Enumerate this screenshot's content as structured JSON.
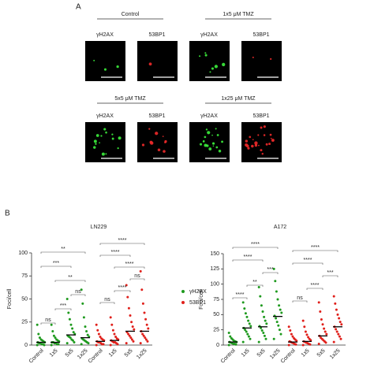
{
  "panel_a": {
    "label": "A",
    "groups": [
      {
        "title": "Control",
        "channels": [
          "γH2AX",
          "53BP1"
        ]
      },
      {
        "title": "1x5 μM TMZ",
        "channels": [
          "γH2AX",
          "53BP1"
        ]
      },
      {
        "title": "5x5 μM TMZ",
        "channels": [
          "γH2AX",
          "53BP1"
        ]
      },
      {
        "title": "1x25 μM TMZ",
        "channels": [
          "γH2AX",
          "53BP1"
        ]
      }
    ]
  },
  "panel_b": {
    "label": "B",
    "legend": [
      {
        "name": "γH2AX",
        "color": "#1e9a1e"
      },
      {
        "name": "53BP1",
        "color": "#e0201b"
      }
    ]
  },
  "chart_data": [
    {
      "type": "dotplot",
      "title": "LN229",
      "y_label": "Foci/cell",
      "categories": [
        "Control",
        "1x5",
        "5x5",
        "1x25"
      ],
      "ylim": [
        0,
        100
      ],
      "yticks": [
        0,
        25,
        50,
        75,
        100
      ],
      "series": [
        {
          "color": "#1e9a1e",
          "values": [
            [
              0,
              0,
              1,
              1,
              2,
              2,
              3,
              3,
              4,
              5,
              6,
              8,
              12,
              22
            ],
            [
              0,
              1,
              1,
              2,
              2,
              3,
              3,
              4,
              5,
              6,
              8,
              10,
              15,
              22
            ],
            [
              2,
              3,
              5,
              6,
              8,
              9,
              10,
              12,
              14,
              18,
              22,
              28,
              35,
              50
            ],
            [
              1,
              2,
              3,
              4,
              5,
              6,
              7,
              9,
              11,
              15,
              20,
              30,
              45,
              60
            ]
          ],
          "means": [
            3,
            3,
            11,
            8
          ],
          "brackets": [
            {
              "from": "Control",
              "to": "1x5",
              "label": "ns"
            },
            {
              "from": "1x5",
              "to": "5x5",
              "label": "***"
            },
            {
              "from": "5x5",
              "to": "1x25",
              "label": "ns"
            },
            {
              "from": "1x5",
              "to": "1x25",
              "label": "**"
            },
            {
              "from": "Control",
              "to": "5x5",
              "label": "***"
            },
            {
              "from": "Control",
              "to": "1x25",
              "label": "**"
            }
          ]
        },
        {
          "color": "#e0201b",
          "values": [
            [
              0,
              1,
              1,
              2,
              3,
              3,
              4,
              5,
              6,
              7,
              9,
              12,
              16,
              22
            ],
            [
              0,
              1,
              2,
              3,
              3,
              4,
              5,
              6,
              7,
              9,
              12,
              16,
              22,
              30
            ],
            [
              2,
              4,
              6,
              8,
              10,
              12,
              14,
              17,
              20,
              25,
              32,
              40,
              52,
              65
            ],
            [
              2,
              4,
              6,
              8,
              10,
              12,
              15,
              18,
              22,
              28,
              35,
              45,
              60,
              80
            ]
          ],
          "means": [
            4,
            5,
            15,
            15
          ],
          "brackets": [
            {
              "from": "Control",
              "to": "1x5",
              "label": "ns"
            },
            {
              "from": "1x5",
              "to": "5x5",
              "label": "****"
            },
            {
              "from": "5x5",
              "to": "1x25",
              "label": "ns"
            },
            {
              "from": "1x5",
              "to": "1x25",
              "label": "****"
            },
            {
              "from": "Control",
              "to": "5x5",
              "label": "****"
            },
            {
              "from": "Control",
              "to": "1x25",
              "label": "****"
            }
          ]
        }
      ]
    },
    {
      "type": "dotplot",
      "title": "A172",
      "y_label": "Foci/cell",
      "categories": [
        "Control",
        "1x5",
        "5x5",
        "1x25"
      ],
      "ylim": [
        0,
        150
      ],
      "yticks": [
        0,
        25,
        50,
        75,
        100,
        125,
        150
      ],
      "series": [
        {
          "color": "#1e9a1e",
          "values": [
            [
              0,
              1,
              2,
              2,
              3,
              4,
              5,
              5,
              6,
              7,
              9,
              11,
              14,
              20
            ],
            [
              5,
              10,
              14,
              18,
              22,
              25,
              28,
              31,
              35,
              40,
              46,
              52,
              60,
              70
            ],
            [
              5,
              10,
              15,
              20,
              24,
              28,
              31,
              35,
              40,
              46,
              55,
              65,
              80,
              95
            ],
            [
              10,
              18,
              25,
              32,
              38,
              44,
              48,
              53,
              58,
              65,
              75,
              88,
              105,
              125
            ]
          ],
          "means": [
            5,
            28,
            30,
            47
          ],
          "brackets": [
            {
              "from": "Control",
              "to": "1x5",
              "label": "****"
            },
            {
              "from": "1x5",
              "to": "5x5",
              "label": "**"
            },
            {
              "from": "5x5",
              "to": "1x25",
              "label": "***"
            },
            {
              "from": "Control",
              "to": "5x5",
              "label": "****"
            },
            {
              "from": "Control",
              "to": "1x25",
              "label": "****"
            }
          ]
        },
        {
          "color": "#e0201b",
          "values": [
            [
              0,
              1,
              2,
              3,
              4,
              5,
              6,
              7,
              9,
              11,
              14,
              18,
              24,
              30
            ],
            [
              0,
              1,
              2,
              3,
              4,
              5,
              6,
              8,
              10,
              13,
              17,
              22,
              30,
              40
            ],
            [
              2,
              4,
              6,
              8,
              10,
              12,
              15,
              18,
              22,
              27,
              34,
              42,
              55,
              70
            ],
            [
              5,
              10,
              14,
              18,
              22,
              26,
              30,
              34,
              38,
              44,
              50,
              58,
              68,
              80
            ]
          ],
          "means": [
            5,
            6,
            15,
            30
          ],
          "brackets": [
            {
              "from": "Control",
              "to": "1x5",
              "label": "ns"
            },
            {
              "from": "1x5",
              "to": "5x5",
              "label": "****"
            },
            {
              "from": "5x5",
              "to": "1x25",
              "label": "***"
            },
            {
              "from": "Control",
              "to": "5x5",
              "label": "****"
            },
            {
              "from": "Control",
              "to": "1x25",
              "label": "****"
            }
          ]
        }
      ]
    }
  ]
}
